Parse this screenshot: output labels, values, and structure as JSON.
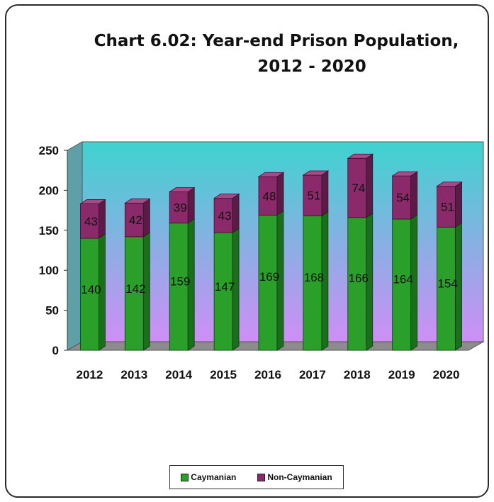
{
  "colors": {
    "caymanian": "#2a9f2a",
    "caymanian_side": "#1a6f1a",
    "caymanian_top": "#4cc84c",
    "non_caymanian": "#8a2a6a",
    "non_caymanian_side": "#5c1a46",
    "non_caymanian_top": "#a84a88",
    "wall_top": "#3ed3cf",
    "wall_bottom": "#cf8ef6",
    "floor": "#8c8c8c"
  },
  "chart_data": {
    "type": "bar",
    "stacked": true,
    "three_d": true,
    "title_line1": "Chart 6.02: Year-end Prison Population,",
    "title_line2": "2012 - 2020",
    "categories": [
      "2012",
      "2013",
      "2014",
      "2015",
      "2016",
      "2017",
      "2018",
      "2019",
      "2020"
    ],
    "series": [
      {
        "name": "Caymanian",
        "values": [
          140,
          142,
          159,
          147,
          169,
          168,
          166,
          164,
          154
        ]
      },
      {
        "name": "Non-Caymanian",
        "values": [
          43,
          42,
          39,
          43,
          48,
          51,
          74,
          54,
          51
        ]
      }
    ],
    "ylim": [
      0,
      250
    ],
    "yticks": [
      "0",
      "50",
      "100",
      "150",
      "200",
      "250"
    ],
    "legend_position": "bottom"
  }
}
